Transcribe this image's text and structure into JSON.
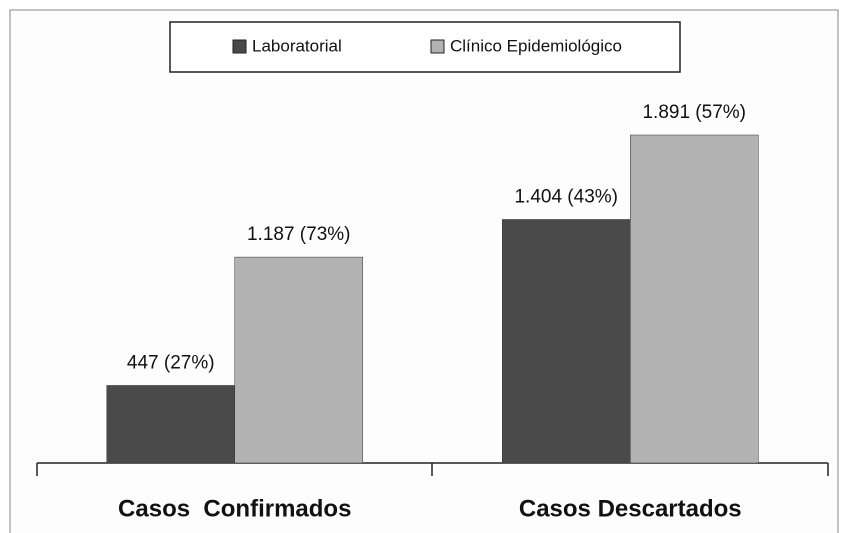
{
  "chart_data": {
    "type": "bar",
    "categories": [
      "Casos  Confirmados",
      "Casos Descartados"
    ],
    "series": [
      {
        "name": "Laboratorial",
        "color": "#4a4a4a",
        "values": [
          447,
          1404
        ],
        "value_labels": [
          "447 (27%)",
          "1.404 (43%)"
        ]
      },
      {
        "name": "Clínico Epidemiológico",
        "color": "#b2b2b2",
        "values": [
          1187,
          1891
        ],
        "value_labels": [
          "1.187 (73%)",
          "1.891 (57%)"
        ]
      }
    ],
    "legend": "top"
  }
}
